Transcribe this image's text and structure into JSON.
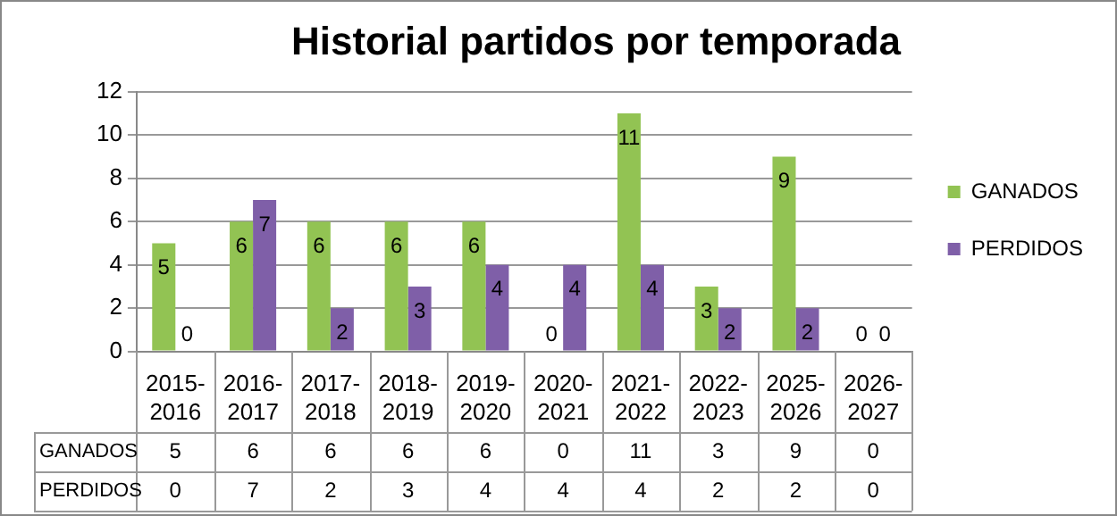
{
  "chart_data": {
    "type": "bar",
    "title": "Historial partidos por temporada",
    "categories": [
      "2015-2016",
      "2016-2017",
      "2017-2018",
      "2018-2019",
      "2019-2020",
      "2020-2021",
      "2021-2022",
      "2022-2023",
      "2025-2026",
      "2026-2027"
    ],
    "series": [
      {
        "name": "GANADOS",
        "color": "#92c353",
        "values": [
          5,
          6,
          6,
          6,
          6,
          0,
          11,
          3,
          9,
          0
        ]
      },
      {
        "name": "PERDIDOS",
        "color": "#7f5fa8",
        "values": [
          0,
          7,
          2,
          3,
          4,
          4,
          4,
          2,
          2,
          0
        ]
      }
    ],
    "annotations": [
      {
        "text": "5",
        "x": "2015-2016",
        "y": 5
      },
      {
        "text": "6",
        "x": "2016-2017",
        "y": 6
      },
      {
        "text": "6",
        "x": "2017-2018",
        "y": 6
      },
      {
        "text": "6",
        "x": "2018-2019",
        "y": 6
      },
      {
        "text": "6",
        "x": "2019-2020",
        "y": 6
      },
      {
        "text": "0",
        "x": "2020-2021",
        "y": 0
      },
      {
        "text": "11",
        "x": "2021-2022",
        "y": 11
      },
      {
        "text": "3",
        "x": "2022-2023",
        "y": 3
      },
      {
        "text": "9",
        "x": "2025-2026",
        "y": 9
      },
      {
        "text": "0",
        "x": "2026-2027",
        "y": 0
      },
      {
        "text": "0",
        "x": "2015-2016",
        "y": 0
      },
      {
        "text": "7",
        "x": "2016-2017",
        "y": 7
      },
      {
        "text": "2",
        "x": "2017-2018",
        "y": 2
      },
      {
        "text": "3",
        "x": "2018-2019",
        "y": 3
      },
      {
        "text": "4",
        "x": "2019-2020",
        "y": 4
      },
      {
        "text": "4",
        "x": "2020-2021",
        "y": 4
      },
      {
        "text": "4",
        "x": "2021-2022",
        "y": 4
      },
      {
        "text": "2",
        "x": "2022-2023",
        "y": 2
      },
      {
        "text": "2",
        "x": "2025-2026",
        "y": 2
      },
      {
        "text": "0",
        "x": "2026-2027",
        "y": 0
      }
    ],
    "ylim": [
      0,
      12
    ],
    "yticks": [
      0,
      2,
      4,
      6,
      8,
      10,
      12
    ],
    "grid": "y",
    "legend": "right",
    "data_labels": true
  }
}
